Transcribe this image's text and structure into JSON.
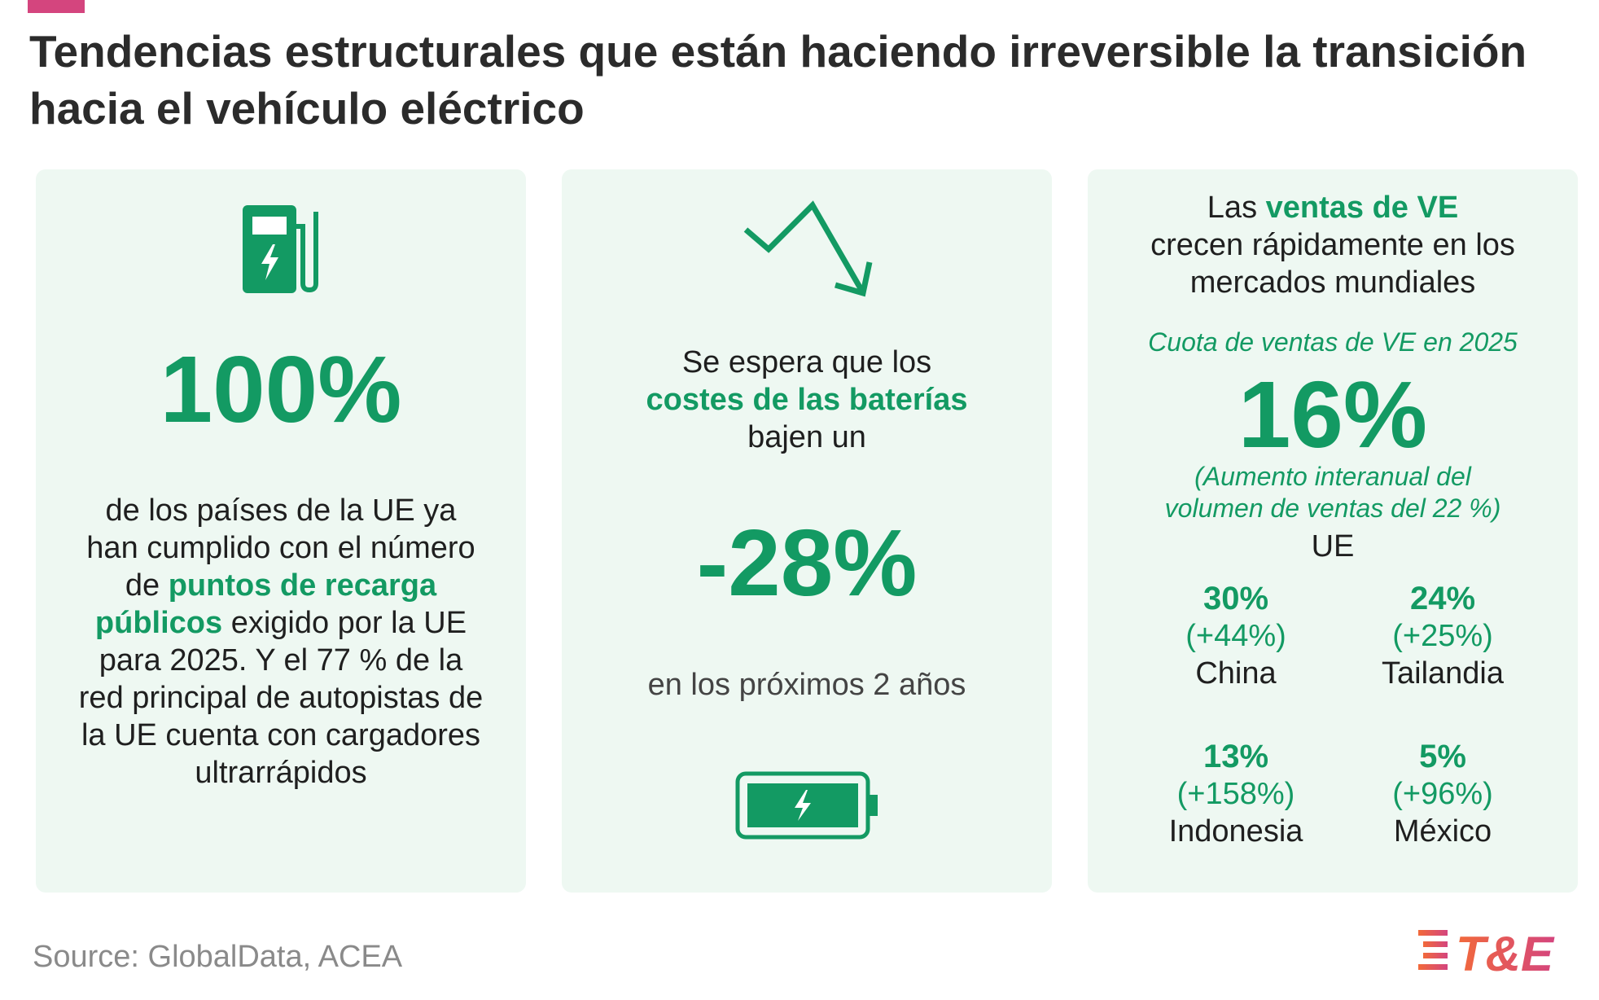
{
  "title_line1": "Tendencias estructurales que están haciendo irreversible la transición",
  "title_line2": "hacia el vehículo eléctrico",
  "card1": {
    "icon": "ev-charger-icon",
    "big_value": "100%",
    "text_a": "de los países de la UE ya han cumplido con el número de ",
    "text_highlight": "puntos de recarga públicos",
    "text_b": " exigido por la UE para 2025. Y el 77 % de la red principal de autopistas de la UE cuenta con cargadores ultrarrápidos"
  },
  "card2": {
    "icon_top": "trend-down-arrow-icon",
    "intro_a": "Se espera que los",
    "intro_highlight": "costes de las baterías",
    "intro_b": "bajen un",
    "big_value": "-28%",
    "footer": "en los próximos 2 años",
    "icon_bottom": "battery-charging-icon"
  },
  "card3": {
    "head_a": "Las ",
    "head_highlight": "ventas de VE",
    "head_b": "crecen rápidamente en los",
    "head_c": "mercados mundiales",
    "subtitle": "Cuota de ventas de VE en 2025",
    "big_value": "16%",
    "note_line1": "(Aumento interanual del",
    "note_line2": "volumen de ventas del 22 %)",
    "region": "UE",
    "markets": [
      {
        "pct": "30%",
        "change": "(+44%)",
        "country": "China"
      },
      {
        "pct": "24%",
        "change": "(+25%)",
        "country": "Tailandia"
      },
      {
        "pct": "13%",
        "change": "(+158%)",
        "country": "Indonesia"
      },
      {
        "pct": "5%",
        "change": "(+96%)",
        "country": "México"
      }
    ]
  },
  "source": "Source: GlobalData, ACEA",
  "logo_text": "T&E",
  "colors": {
    "green": "#139a63",
    "pink": "#d4457e",
    "card_bg": "#eef8f2"
  }
}
